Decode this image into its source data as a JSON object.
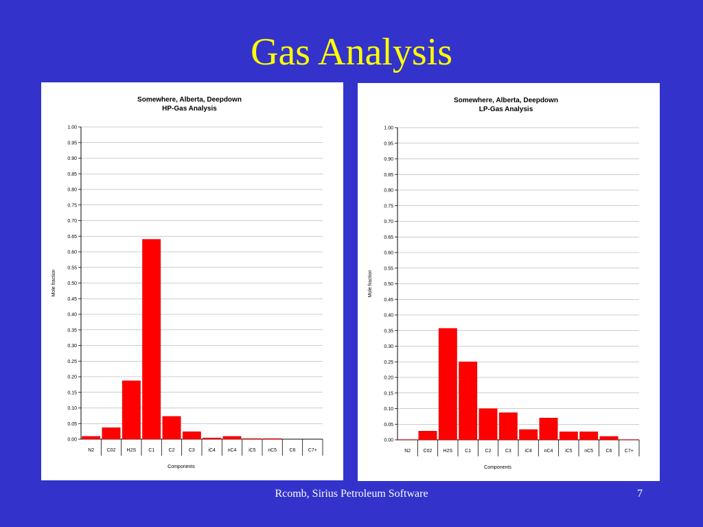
{
  "slide": {
    "title": "Gas Analysis",
    "footer": "Rcomb, Sirius Petroleum Software",
    "page_number": "7"
  },
  "chart_data": [
    {
      "type": "bar",
      "title": "Somewhere, Alberta, Deepdown",
      "subtitle": "HP-Gas Analysis",
      "x_label": "Components",
      "y_label": "Mole fraction",
      "categories": [
        "N2",
        "C02",
        "H2S",
        "C1",
        "C2",
        "C3",
        "iC4",
        "nC4",
        "iC5",
        "nC5",
        "C6",
        "C7+"
      ],
      "values": [
        0.009,
        0.037,
        0.187,
        0.64,
        0.073,
        0.024,
        0.004,
        0.009,
        0.002,
        0.002,
        0,
        0
      ],
      "color": "#ff0000",
      "grid": true,
      "ylim": [
        0,
        1
      ],
      "yticks": [
        {
          "value": 0,
          "label": "0.00"
        },
        {
          "value": 0.05,
          "label": "0.05"
        },
        {
          "value": 0.1,
          "label": "0.10"
        },
        {
          "value": 0.15,
          "label": "0.15"
        },
        {
          "value": 0.2,
          "label": "0.20"
        },
        {
          "value": 0.25,
          "label": "0.25"
        },
        {
          "value": 0.3,
          "label": "0.30"
        },
        {
          "value": 0.35,
          "label": "0.35"
        },
        {
          "value": 0.4,
          "label": "0.40"
        },
        {
          "value": 0.45,
          "label": "0.45"
        },
        {
          "value": 0.5,
          "label": "0.50"
        },
        {
          "value": 0.55,
          "label": "0.55"
        },
        {
          "value": 0.6,
          "label": "0.60"
        },
        {
          "value": 0.65,
          "label": "0.65"
        },
        {
          "value": 0.7,
          "label": "0.70"
        },
        {
          "value": 0.75,
          "label": "0.75"
        },
        {
          "value": 0.8,
          "label": "0.80"
        },
        {
          "value": 0.85,
          "label": "0.85"
        },
        {
          "value": 0.9,
          "label": "0.90"
        },
        {
          "value": 0.95,
          "label": "0.95"
        },
        {
          "value": 1,
          "label": "1.00"
        }
      ]
    },
    {
      "type": "bar",
      "title": "Somewhere, Alberta, Deepdown",
      "subtitle": "LP-Gas Analysis",
      "x_label": "Components",
      "y_label": "Mole fraction",
      "categories": [
        "N2",
        "C02",
        "H2S",
        "C1",
        "C2",
        "C3",
        "iC4",
        "nC4",
        "iC5",
        "nC5",
        "C6",
        "C7+"
      ],
      "values": [
        0.001,
        0.028,
        0.357,
        0.25,
        0.1,
        0.087,
        0.033,
        0.07,
        0.026,
        0.026,
        0.011,
        0.001
      ],
      "color": "#ff0000",
      "grid": true,
      "ylim": [
        0,
        1
      ],
      "yticks": [
        {
          "value": 0,
          "label": "0.00"
        },
        {
          "value": 0.05,
          "label": "0.05"
        },
        {
          "value": 0.1,
          "label": "0.10"
        },
        {
          "value": 0.15,
          "label": "0.15"
        },
        {
          "value": 0.2,
          "label": "0.20"
        },
        {
          "value": 0.25,
          "label": "0.25"
        },
        {
          "value": 0.3,
          "label": "0.30"
        },
        {
          "value": 0.35,
          "label": "0.35"
        },
        {
          "value": 0.4,
          "label": "0.40"
        },
        {
          "value": 0.45,
          "label": "0.45"
        },
        {
          "value": 0.5,
          "label": "0.50"
        },
        {
          "value": 0.55,
          "label": "0.55"
        },
        {
          "value": 0.6,
          "label": "0.60"
        },
        {
          "value": 0.65,
          "label": "0.65"
        },
        {
          "value": 0.7,
          "label": "0.70"
        },
        {
          "value": 0.75,
          "label": "0.75"
        },
        {
          "value": 0.8,
          "label": "0.80"
        },
        {
          "value": 0.85,
          "label": "0.85"
        },
        {
          "value": 0.9,
          "label": "0.90"
        },
        {
          "value": 0.95,
          "label": "0.95"
        },
        {
          "value": 1,
          "label": "1.00"
        }
      ]
    }
  ]
}
